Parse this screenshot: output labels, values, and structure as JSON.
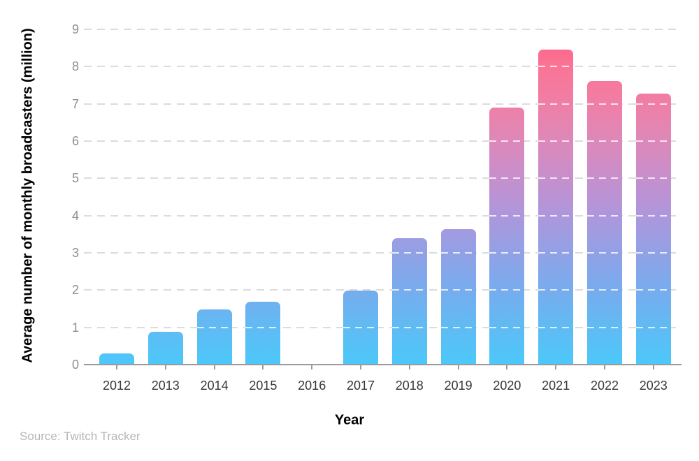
{
  "chart_data": {
    "type": "bar",
    "title": "",
    "xlabel": "Year",
    "ylabel": "Average number of monthly broadcasters (million)",
    "source": "Source: Twitch Tracker",
    "categories": [
      "2012",
      "2013",
      "2014",
      "2015",
      "2016",
      "2017",
      "2018",
      "2019",
      "2020",
      "2021",
      "2022",
      "2023"
    ],
    "values": [
      0.3,
      0.89,
      1.49,
      1.69,
      0,
      1.99,
      3.39,
      3.63,
      6.9,
      8.46,
      7.62,
      7.28
    ],
    "ylim": [
      0,
      9
    ],
    "yticks": [
      "0",
      "1",
      "2",
      "3",
      "4",
      "5",
      "6",
      "7",
      "8",
      "9"
    ],
    "grid": "horizontal-dashed",
    "legend": "none",
    "bar_gradient_bottom_to_top": [
      "#4CC8FA",
      "#60BBF3",
      "#77ACEE",
      "#92A1E6",
      "#AD97DC",
      "#C68FCC",
      "#DD88B9",
      "#EF7FA6",
      "#FA7496",
      "#FD5E80"
    ],
    "colors": {
      "background": "#ffffff",
      "gridline": "#dcdcdc",
      "gridline_over_bar": "rgba(255,255,255,0.78)",
      "axis_line": "#9b9b9b",
      "tick_mark": "#9b9b9b",
      "y_tick_label": "#8f8f8f",
      "x_tick_label": "#3a3a3a",
      "axis_title": "#000000",
      "source_text": "#b6b6b6"
    }
  }
}
